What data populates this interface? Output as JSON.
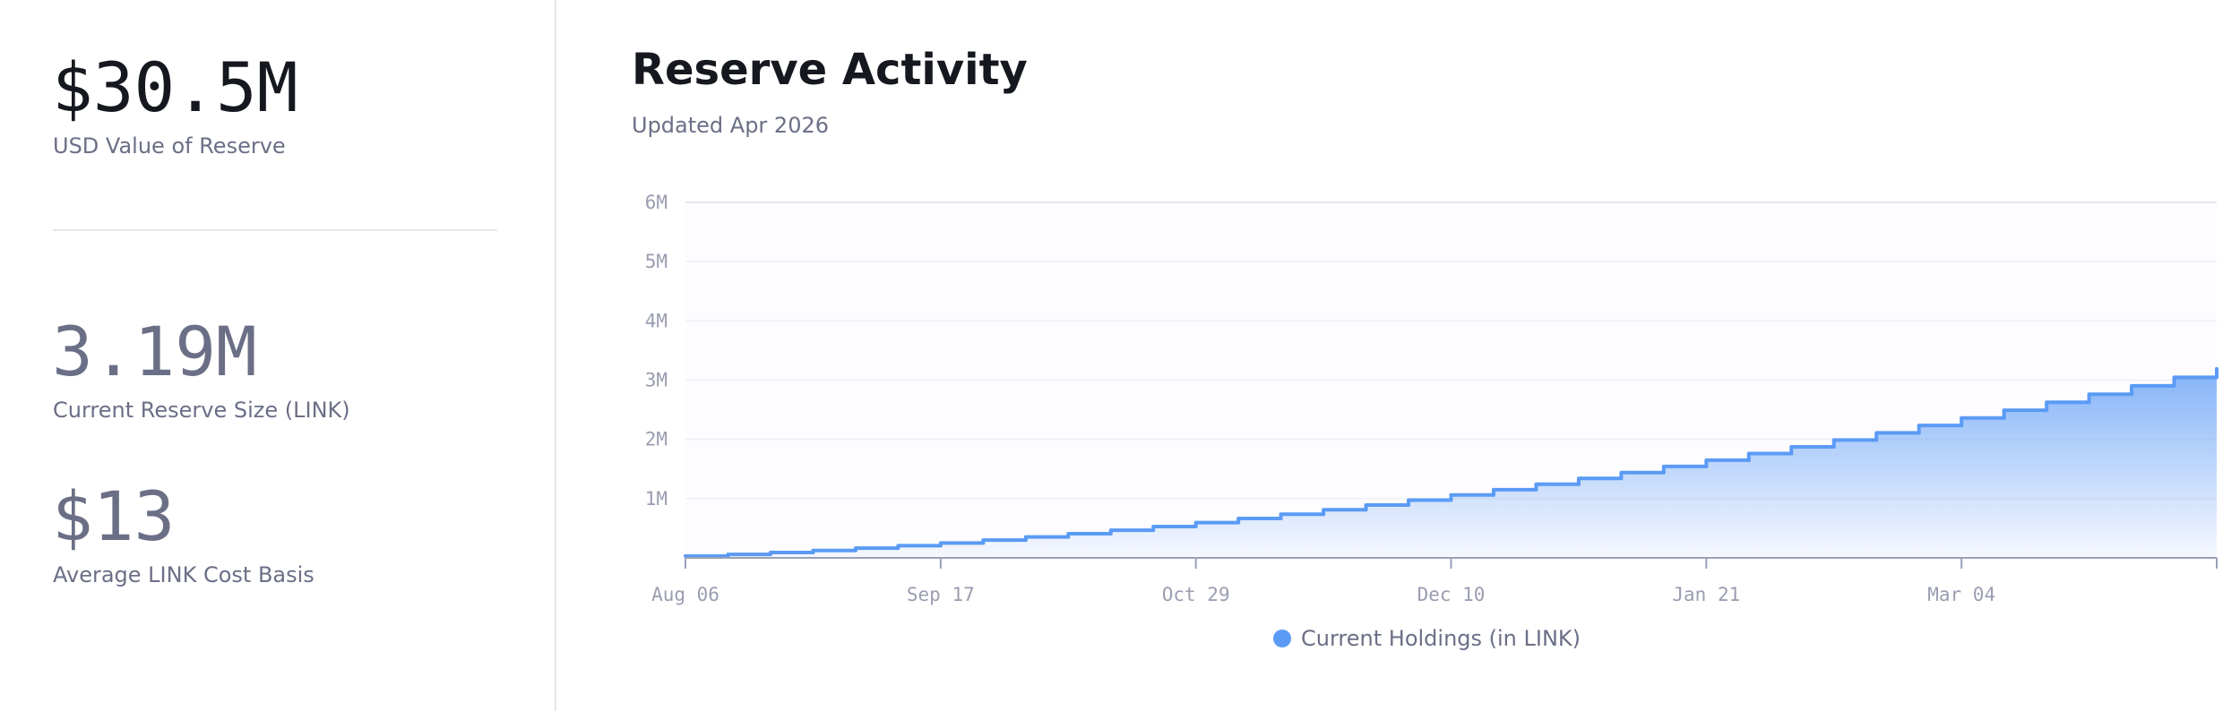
{
  "stats": [
    {
      "value": "$30.5M",
      "label": "USD Value of Reserve"
    },
    {
      "value": "3.19M",
      "label": "Current Reserve Size (LINK)"
    },
    {
      "value": "$13",
      "label": "Average LINK Cost Basis"
    }
  ],
  "chart_data": {
    "type": "step-area",
    "title": "Reserve Activity",
    "subtitle": "Updated Apr 2026",
    "categories": [
      "Aug 06",
      null,
      null,
      null,
      null,
      null,
      "Sep 17",
      null,
      null,
      null,
      null,
      null,
      "Oct 29",
      null,
      null,
      null,
      null,
      null,
      "Dec 10",
      null,
      null,
      null,
      null,
      null,
      "Jan 21",
      null,
      null,
      null,
      null,
      null,
      "Mar 04",
      null,
      null,
      null,
      null,
      null,
      null
    ],
    "series": [
      {
        "name": "Current Holdings (in LINK)",
        "color": "#5b9bf5",
        "values": [
          30000,
          58400,
          90200,
          125400,
          164000,
          206000,
          251400,
          300200,
          352400,
          408000,
          467000,
          529400,
          595200,
          664400,
          737000,
          813000,
          892400,
          975200,
          1061400,
          1151000,
          1244000,
          1340400,
          1440200,
          1543400,
          1650000,
          1760000,
          1873400,
          1990200,
          2110400,
          2234000,
          2361000,
          2491400,
          2625200,
          2762400,
          2903000,
          3047000,
          3190000
        ]
      }
    ],
    "ylim": [
      0,
      6000000
    ],
    "yticks": [
      {
        "value": 1000000,
        "label": "1M"
      },
      {
        "value": 2000000,
        "label": "2M"
      },
      {
        "value": 3000000,
        "label": "3M"
      },
      {
        "value": 4000000,
        "label": "4M"
      },
      {
        "value": 5000000,
        "label": "5M"
      },
      {
        "value": 6000000,
        "label": "6M"
      }
    ],
    "grid": true,
    "legend": "bottom"
  }
}
